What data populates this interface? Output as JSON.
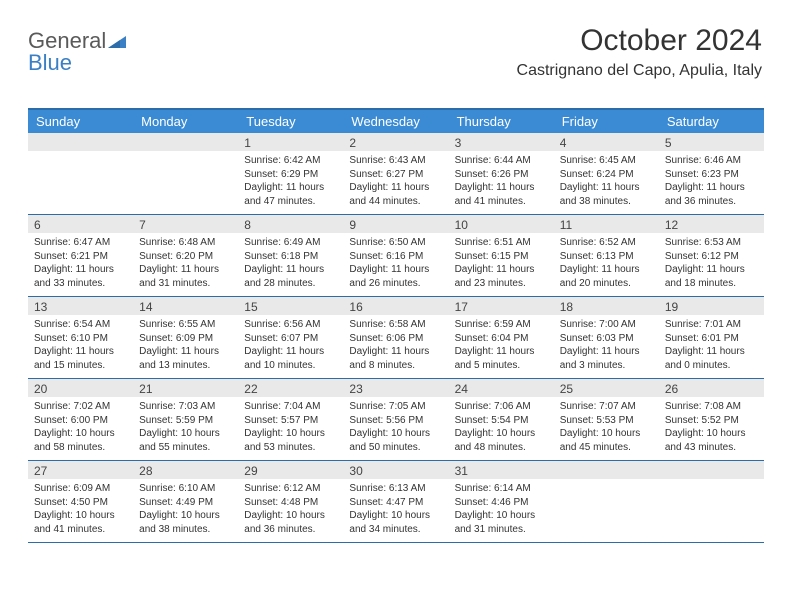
{
  "logo": {
    "textGray": "General",
    "textBlue": "Blue"
  },
  "header": {
    "monthTitle": "October 2024",
    "location": "Castrignano del Capo, Apulia, Italy"
  },
  "colors": {
    "headerBar": "#3b8bd4",
    "borderTop": "#2c6ca8",
    "cellHeadBg": "#e9e9e9",
    "logoBlue": "#3b7fc4",
    "textGray": "#5a5a5a"
  },
  "dayNames": [
    "Sunday",
    "Monday",
    "Tuesday",
    "Wednesday",
    "Thursday",
    "Friday",
    "Saturday"
  ],
  "weeks": [
    [
      {
        "n": "",
        "sunrise": "",
        "sunset": "",
        "daylight": ""
      },
      {
        "n": "",
        "sunrise": "",
        "sunset": "",
        "daylight": ""
      },
      {
        "n": "1",
        "sunrise": "Sunrise: 6:42 AM",
        "sunset": "Sunset: 6:29 PM",
        "daylight": "Daylight: 11 hours and 47 minutes."
      },
      {
        "n": "2",
        "sunrise": "Sunrise: 6:43 AM",
        "sunset": "Sunset: 6:27 PM",
        "daylight": "Daylight: 11 hours and 44 minutes."
      },
      {
        "n": "3",
        "sunrise": "Sunrise: 6:44 AM",
        "sunset": "Sunset: 6:26 PM",
        "daylight": "Daylight: 11 hours and 41 minutes."
      },
      {
        "n": "4",
        "sunrise": "Sunrise: 6:45 AM",
        "sunset": "Sunset: 6:24 PM",
        "daylight": "Daylight: 11 hours and 38 minutes."
      },
      {
        "n": "5",
        "sunrise": "Sunrise: 6:46 AM",
        "sunset": "Sunset: 6:23 PM",
        "daylight": "Daylight: 11 hours and 36 minutes."
      }
    ],
    [
      {
        "n": "6",
        "sunrise": "Sunrise: 6:47 AM",
        "sunset": "Sunset: 6:21 PM",
        "daylight": "Daylight: 11 hours and 33 minutes."
      },
      {
        "n": "7",
        "sunrise": "Sunrise: 6:48 AM",
        "sunset": "Sunset: 6:20 PM",
        "daylight": "Daylight: 11 hours and 31 minutes."
      },
      {
        "n": "8",
        "sunrise": "Sunrise: 6:49 AM",
        "sunset": "Sunset: 6:18 PM",
        "daylight": "Daylight: 11 hours and 28 minutes."
      },
      {
        "n": "9",
        "sunrise": "Sunrise: 6:50 AM",
        "sunset": "Sunset: 6:16 PM",
        "daylight": "Daylight: 11 hours and 26 minutes."
      },
      {
        "n": "10",
        "sunrise": "Sunrise: 6:51 AM",
        "sunset": "Sunset: 6:15 PM",
        "daylight": "Daylight: 11 hours and 23 minutes."
      },
      {
        "n": "11",
        "sunrise": "Sunrise: 6:52 AM",
        "sunset": "Sunset: 6:13 PM",
        "daylight": "Daylight: 11 hours and 20 minutes."
      },
      {
        "n": "12",
        "sunrise": "Sunrise: 6:53 AM",
        "sunset": "Sunset: 6:12 PM",
        "daylight": "Daylight: 11 hours and 18 minutes."
      }
    ],
    [
      {
        "n": "13",
        "sunrise": "Sunrise: 6:54 AM",
        "sunset": "Sunset: 6:10 PM",
        "daylight": "Daylight: 11 hours and 15 minutes."
      },
      {
        "n": "14",
        "sunrise": "Sunrise: 6:55 AM",
        "sunset": "Sunset: 6:09 PM",
        "daylight": "Daylight: 11 hours and 13 minutes."
      },
      {
        "n": "15",
        "sunrise": "Sunrise: 6:56 AM",
        "sunset": "Sunset: 6:07 PM",
        "daylight": "Daylight: 11 hours and 10 minutes."
      },
      {
        "n": "16",
        "sunrise": "Sunrise: 6:58 AM",
        "sunset": "Sunset: 6:06 PM",
        "daylight": "Daylight: 11 hours and 8 minutes."
      },
      {
        "n": "17",
        "sunrise": "Sunrise: 6:59 AM",
        "sunset": "Sunset: 6:04 PM",
        "daylight": "Daylight: 11 hours and 5 minutes."
      },
      {
        "n": "18",
        "sunrise": "Sunrise: 7:00 AM",
        "sunset": "Sunset: 6:03 PM",
        "daylight": "Daylight: 11 hours and 3 minutes."
      },
      {
        "n": "19",
        "sunrise": "Sunrise: 7:01 AM",
        "sunset": "Sunset: 6:01 PM",
        "daylight": "Daylight: 11 hours and 0 minutes."
      }
    ],
    [
      {
        "n": "20",
        "sunrise": "Sunrise: 7:02 AM",
        "sunset": "Sunset: 6:00 PM",
        "daylight": "Daylight: 10 hours and 58 minutes."
      },
      {
        "n": "21",
        "sunrise": "Sunrise: 7:03 AM",
        "sunset": "Sunset: 5:59 PM",
        "daylight": "Daylight: 10 hours and 55 minutes."
      },
      {
        "n": "22",
        "sunrise": "Sunrise: 7:04 AM",
        "sunset": "Sunset: 5:57 PM",
        "daylight": "Daylight: 10 hours and 53 minutes."
      },
      {
        "n": "23",
        "sunrise": "Sunrise: 7:05 AM",
        "sunset": "Sunset: 5:56 PM",
        "daylight": "Daylight: 10 hours and 50 minutes."
      },
      {
        "n": "24",
        "sunrise": "Sunrise: 7:06 AM",
        "sunset": "Sunset: 5:54 PM",
        "daylight": "Daylight: 10 hours and 48 minutes."
      },
      {
        "n": "25",
        "sunrise": "Sunrise: 7:07 AM",
        "sunset": "Sunset: 5:53 PM",
        "daylight": "Daylight: 10 hours and 45 minutes."
      },
      {
        "n": "26",
        "sunrise": "Sunrise: 7:08 AM",
        "sunset": "Sunset: 5:52 PM",
        "daylight": "Daylight: 10 hours and 43 minutes."
      }
    ],
    [
      {
        "n": "27",
        "sunrise": "Sunrise: 6:09 AM",
        "sunset": "Sunset: 4:50 PM",
        "daylight": "Daylight: 10 hours and 41 minutes."
      },
      {
        "n": "28",
        "sunrise": "Sunrise: 6:10 AM",
        "sunset": "Sunset: 4:49 PM",
        "daylight": "Daylight: 10 hours and 38 minutes."
      },
      {
        "n": "29",
        "sunrise": "Sunrise: 6:12 AM",
        "sunset": "Sunset: 4:48 PM",
        "daylight": "Daylight: 10 hours and 36 minutes."
      },
      {
        "n": "30",
        "sunrise": "Sunrise: 6:13 AM",
        "sunset": "Sunset: 4:47 PM",
        "daylight": "Daylight: 10 hours and 34 minutes."
      },
      {
        "n": "31",
        "sunrise": "Sunrise: 6:14 AM",
        "sunset": "Sunset: 4:46 PM",
        "daylight": "Daylight: 10 hours and 31 minutes."
      },
      {
        "n": "",
        "sunrise": "",
        "sunset": "",
        "daylight": ""
      },
      {
        "n": "",
        "sunrise": "",
        "sunset": "",
        "daylight": ""
      }
    ]
  ]
}
